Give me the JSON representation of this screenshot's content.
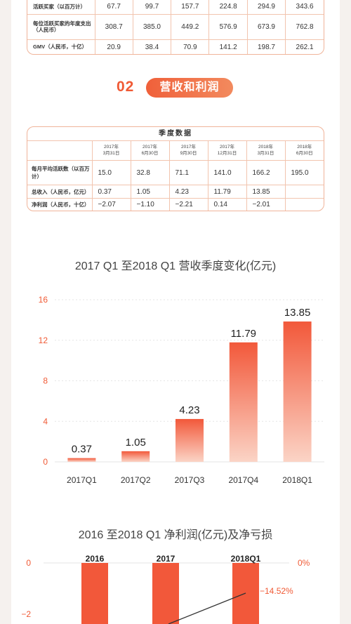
{
  "top_table": {
    "rows": [
      {
        "label": "活跃买家（以百万计）",
        "values": [
          "67.7",
          "99.7",
          "157.7",
          "224.8",
          "294.9",
          "343.6"
        ]
      },
      {
        "label": "每位活跃买家的年度支出（人民币）",
        "values": [
          "308.7",
          "385.0",
          "449.2",
          "576.9",
          "673.9",
          "762.8"
        ]
      },
      {
        "label": "GMV（人民币，十亿）",
        "values": [
          "20.9",
          "38.4",
          "70.9",
          "141.2",
          "198.7",
          "262.1"
        ]
      }
    ]
  },
  "section": {
    "number": "02",
    "title": "营收和利润"
  },
  "quarter_table": {
    "title": "季度数据",
    "dates": [
      {
        "year": "2017年",
        "day": "3月31日"
      },
      {
        "year": "2017年",
        "day": "6月30日"
      },
      {
        "year": "2017年",
        "day": "9月30日"
      },
      {
        "year": "2017年",
        "day": "12月31日"
      },
      {
        "year": "2018年",
        "day": "3月31日"
      },
      {
        "year": "2018年",
        "day": "6月30日"
      }
    ],
    "rows": [
      {
        "label": "每月平均活跃数（以百万计）",
        "values": [
          "15.0",
          "32.8",
          "71.1",
          "141.0",
          "166.2",
          "195.0"
        ]
      },
      {
        "label": "总收入（人民币，亿元）",
        "values": [
          "0.37",
          "1.05",
          "4.23",
          "11.79",
          "13.85",
          ""
        ]
      },
      {
        "label": "净利润（人民币，十亿）",
        "values": [
          "−2.07",
          "−1.10",
          "−2.21",
          "0.14",
          "−2.01",
          ""
        ]
      }
    ]
  },
  "chart_data": [
    {
      "type": "bar",
      "title": "2017 Q1 至2018 Q1 营收季度变化(亿元)",
      "categories": [
        "2017Q1",
        "2017Q2",
        "2017Q3",
        "2017Q4",
        "2018Q1"
      ],
      "values": [
        0.37,
        1.05,
        4.23,
        11.79,
        13.85
      ],
      "data_labels": [
        "0.37",
        "1.05",
        "4.23",
        "11.79",
        "13.85"
      ],
      "yticks": [
        "0",
        "4",
        "8",
        "12",
        "16"
      ],
      "ylim": [
        0,
        16
      ],
      "grid": true,
      "colors": {
        "bar_top": "#f2583a",
        "bar_bottom": "#fbd4c6",
        "text": "#222222",
        "tick": "#f05a35"
      }
    },
    {
      "type": "bar",
      "title": "2016 至2018 Q1 净利润(亿元)及净亏损",
      "categories": [
        "2016",
        "2017",
        "2018Q1"
      ],
      "left_ticks": [
        "0",
        "−2"
      ],
      "right_tick": "0%",
      "line_label": "−14.52%",
      "colors": {
        "bar": "#f2583a",
        "tick": "#f05a35",
        "line": "#333333"
      }
    }
  ]
}
